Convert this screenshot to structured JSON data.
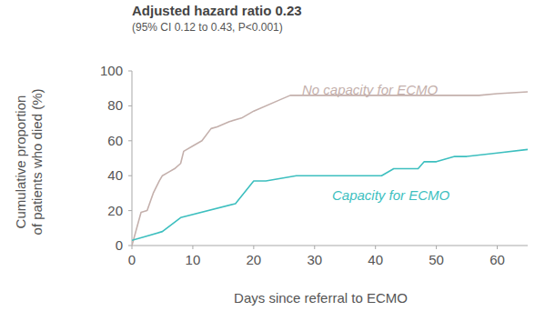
{
  "chart_data": {
    "type": "line",
    "title": "Adjusted hazard ratio 0.23",
    "subtitle": "(95% CI 0.12 to 0.43, P<0.001)",
    "x_label": "Days since referral to ECMO",
    "y_label": "Cumulative proportion\nof patients who died (%)",
    "xlim": [
      0,
      65
    ],
    "xticks": [
      0,
      10,
      20,
      30,
      40,
      50,
      60
    ],
    "ylim": [
      0,
      100
    ],
    "yticks": [
      0,
      20,
      40,
      60,
      80,
      100
    ],
    "grid": false,
    "series": [
      {
        "name": "No capacity for ECMO",
        "color": "#c4b0ac",
        "x": [
          0,
          1.5,
          2.5,
          3.5,
          4.5,
          5,
          6,
          7,
          8,
          8.5,
          10,
          11.5,
          13,
          14,
          16,
          18,
          20,
          24,
          26,
          36,
          57,
          60,
          65
        ],
        "values": [
          0,
          19,
          20,
          30,
          37,
          40,
          42,
          44,
          47,
          54,
          57,
          60,
          67,
          68,
          71,
          73,
          77,
          83,
          86,
          86,
          86,
          87,
          88
        ]
      },
      {
        "name": "Capacity for ECMO",
        "color": "#3dbfbf",
        "x": [
          0,
          2,
          5,
          8,
          17,
          20,
          22,
          27,
          41,
          43,
          47,
          48,
          50,
          53,
          55,
          60,
          65
        ],
        "values": [
          3,
          5,
          8,
          16,
          24,
          37,
          37,
          40,
          40,
          44,
          44,
          48,
          48,
          51,
          51,
          53,
          55
        ]
      }
    ]
  }
}
